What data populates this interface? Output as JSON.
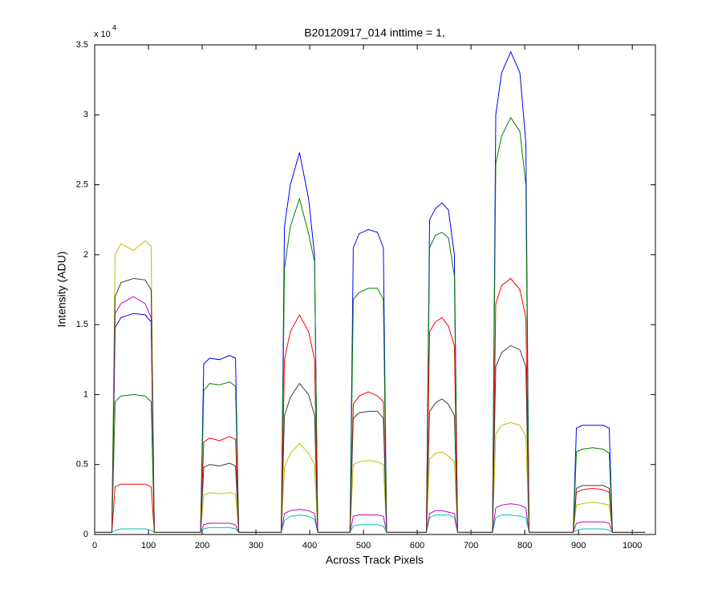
{
  "chart_data": {
    "type": "line",
    "title": "B20120917_014 inttime = 1,",
    "x_label": "Across Track Pixels",
    "y_label": "Intensity (ADU)",
    "y_multiplier": {
      "base": "x 10",
      "exponent": "4"
    },
    "xlim": [
      0,
      1043
    ],
    "xticks": [
      0,
      100,
      200,
      300,
      400,
      500,
      600,
      700,
      800,
      900,
      1000
    ],
    "ylim": [
      0,
      35000
    ],
    "yticks": [
      {
        "value": 0,
        "label": "0"
      },
      {
        "value": 5000,
        "label": "0.5"
      },
      {
        "value": 10000,
        "label": "1"
      },
      {
        "value": 15000,
        "label": "1.5"
      },
      {
        "value": 20000,
        "label": "2"
      },
      {
        "value": 25000,
        "label": "2.5"
      },
      {
        "value": 30000,
        "label": "3"
      },
      {
        "value": 35000,
        "label": "3.5"
      }
    ],
    "x": [
      0,
      32,
      38,
      49,
      72,
      94,
      105,
      111,
      197,
      203,
      214,
      232,
      251,
      262,
      268,
      347,
      353,
      364,
      381,
      398,
      409,
      415,
      475,
      481,
      492,
      509,
      526,
      537,
      543,
      617,
      623,
      634,
      646,
      658,
      669,
      675,
      740,
      746,
      757,
      774,
      791,
      802,
      808,
      890,
      896,
      907,
      926,
      946,
      957,
      963,
      1024
    ],
    "series": [
      {
        "color": "#0000ff",
        "values": [
          150,
          150,
          14800,
          15500,
          15800,
          15700,
          15200,
          150,
          150,
          12200,
          12600,
          12500,
          12800,
          12600,
          150,
          150,
          22000,
          25000,
          27300,
          24000,
          20000,
          150,
          150,
          20500,
          21500,
          21800,
          21600,
          20500,
          150,
          150,
          22500,
          23300,
          23700,
          23200,
          20000,
          150,
          150,
          30000,
          33000,
          34500,
          33000,
          28000,
          150,
          150,
          7600,
          7800,
          7800,
          7800,
          7600,
          150,
          150
        ]
      },
      {
        "color": "#008000",
        "values": [
          150,
          150,
          9500,
          9900,
          10000,
          9900,
          9500,
          150,
          150,
          10300,
          10800,
          10700,
          10900,
          10600,
          150,
          150,
          19000,
          22000,
          24000,
          21500,
          19500,
          150,
          150,
          16800,
          17300,
          17600,
          17600,
          16800,
          150,
          150,
          20500,
          21400,
          21600,
          21200,
          18500,
          150,
          150,
          26500,
          28500,
          29800,
          28800,
          25000,
          150,
          150,
          5900,
          6100,
          6200,
          6100,
          5800,
          150,
          150
        ]
      },
      {
        "color": "#ff0000",
        "values": [
          150,
          150,
          3400,
          3600,
          3600,
          3600,
          3400,
          150,
          150,
          6600,
          6900,
          6700,
          7000,
          6800,
          150,
          150,
          12500,
          14500,
          15700,
          14500,
          12500,
          150,
          150,
          9300,
          9900,
          10200,
          9900,
          9500,
          150,
          150,
          14500,
          15200,
          15500,
          14900,
          13500,
          150,
          150,
          16500,
          17800,
          18300,
          17500,
          15500,
          150,
          150,
          3000,
          3200,
          3300,
          3200,
          3000,
          150,
          150
        ]
      },
      {
        "color": "#00bfbf",
        "values": [
          150,
          150,
          300,
          400,
          400,
          400,
          300,
          150,
          150,
          400,
          500,
          500,
          500,
          400,
          150,
          150,
          1000,
          1300,
          1400,
          1300,
          1100,
          150,
          150,
          600,
          700,
          700,
          700,
          600,
          150,
          150,
          1200,
          1400,
          1400,
          1400,
          1200,
          150,
          150,
          1200,
          1400,
          1400,
          1300,
          1200,
          150,
          150,
          300,
          400,
          400,
          400,
          300,
          150,
          150
        ]
      },
      {
        "color": "#bf00bf",
        "values": [
          150,
          150,
          15800,
          16500,
          17000,
          16500,
          15500,
          150,
          150,
          700,
          800,
          800,
          800,
          700,
          150,
          150,
          1500,
          1700,
          1800,
          1700,
          1500,
          150,
          150,
          1300,
          1400,
          1400,
          1400,
          1300,
          150,
          150,
          1500,
          1700,
          1700,
          1600,
          1500,
          150,
          150,
          1900,
          2100,
          2200,
          2100,
          1900,
          150,
          150,
          800,
          900,
          900,
          900,
          800,
          150,
          150
        ]
      },
      {
        "color": "#bfbf00",
        "values": [
          150,
          150,
          20000,
          20800,
          20300,
          21000,
          20600,
          150,
          150,
          2800,
          3000,
          2900,
          3000,
          2900,
          150,
          150,
          4800,
          5800,
          6500,
          5800,
          5000,
          150,
          150,
          5000,
          5200,
          5300,
          5200,
          5000,
          150,
          150,
          5400,
          5800,
          5900,
          5600,
          5200,
          150,
          150,
          7200,
          7800,
          8000,
          7800,
          7000,
          150,
          150,
          2100,
          2200,
          2300,
          2200,
          2100,
          150,
          150
        ]
      },
      {
        "color": "#404040",
        "values": [
          150,
          150,
          17000,
          18000,
          18300,
          18200,
          17500,
          150,
          150,
          4800,
          5000,
          4900,
          5100,
          4900,
          150,
          150,
          8500,
          9800,
          10800,
          10000,
          8500,
          150,
          150,
          8300,
          8700,
          8800,
          8800,
          8300,
          150,
          150,
          8800,
          9400,
          9700,
          9300,
          8500,
          150,
          150,
          12000,
          13000,
          13500,
          13200,
          12000,
          150,
          150,
          3300,
          3500,
          3500,
          3500,
          3300,
          150,
          150
        ]
      }
    ]
  }
}
